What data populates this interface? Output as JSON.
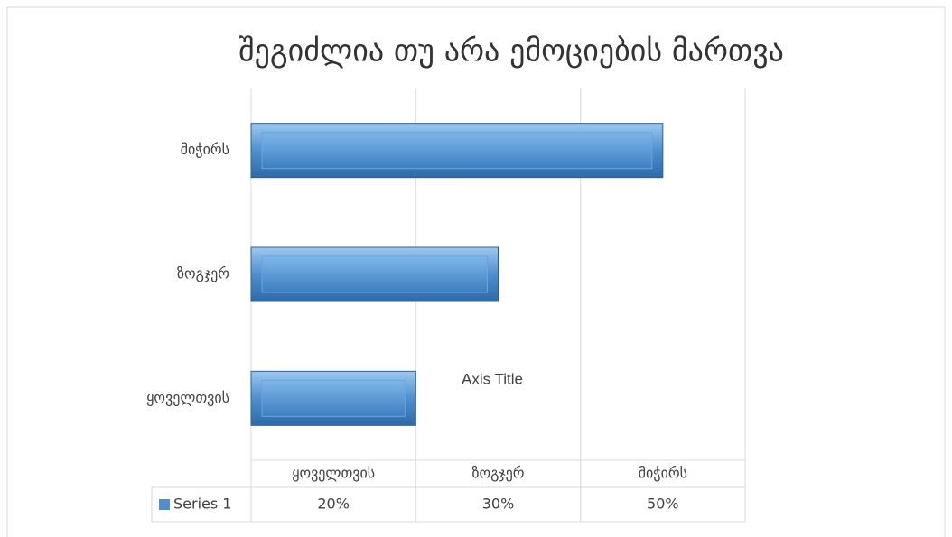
{
  "chart_data": {
    "type": "bar",
    "orientation": "horizontal",
    "title": "შეგიძლია თუ არა ემოციების მართვა",
    "categories": [
      "ყოველთვის",
      "ზოგჯერ",
      "მიჭირს"
    ],
    "series": [
      {
        "name": "Series 1",
        "color": "#4f8fd0",
        "values": [
          20,
          30,
          50
        ],
        "value_labels": [
          "20%",
          "30%",
          "50%"
        ]
      }
    ],
    "xlim": [
      0,
      60
    ],
    "xticks": [
      0,
      20,
      40,
      60
    ],
    "grid": true,
    "annotation": "Axis Title",
    "data_table": true
  }
}
